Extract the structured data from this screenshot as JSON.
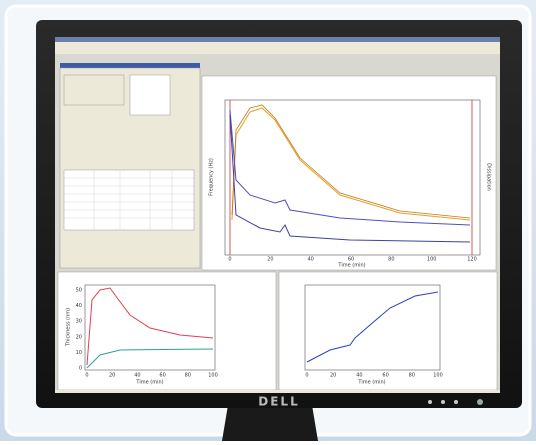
{
  "monitor": {
    "brand": "DELL"
  },
  "main_plot": {
    "y_label": "Frequency (Hz)",
    "x_label": "Time (min)",
    "y2_label": "Dissipation",
    "x_ticks": [
      "0",
      "20",
      "40",
      "60",
      "80",
      "100",
      "120"
    ]
  },
  "bottom_left_plot": {
    "y_label": "Thickness (nm)",
    "x_label": "Time (min)",
    "x_ticks": [
      "0",
      "20",
      "40",
      "60",
      "80",
      "100"
    ],
    "y_ticks": [
      "0",
      "10",
      "20",
      "30",
      "40",
      "50"
    ]
  },
  "bottom_right_plot": {
    "x_label": "Time (min)",
    "x_ticks": [
      "0",
      "20",
      "40",
      "60",
      "80",
      "100"
    ]
  }
}
